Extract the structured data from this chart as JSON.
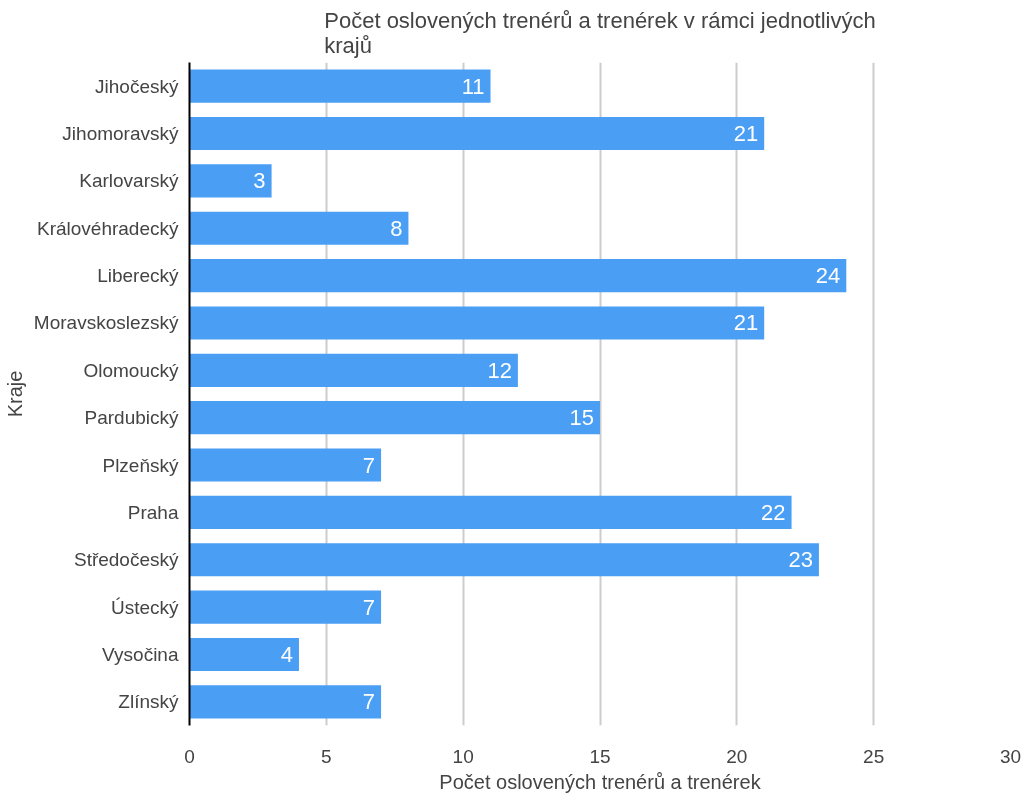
{
  "chart_data": {
    "type": "bar",
    "orientation": "horizontal",
    "title": "Počet oslovených trenérů a trenérek v rámci jednotlivých krajů",
    "xlabel": "Počet oslovených trenérů a trenérek",
    "ylabel": "Kraje",
    "categories": [
      "Jihočeský",
      "Jihomoravský",
      "Karlovarský",
      "Královéhradecký",
      "Liberecký",
      "Moravskoslezský",
      "Olomoucký",
      "Pardubický",
      "Plzeňský",
      "Praha",
      "Středočeský",
      "Ústecký",
      "Vysočina",
      "Zlínský"
    ],
    "values": [
      11,
      21,
      3,
      8,
      24,
      21,
      12,
      15,
      7,
      22,
      23,
      7,
      4,
      7
    ],
    "color": "#4a9ff5",
    "xlim": [
      0,
      30
    ],
    "xticks": [
      0,
      5,
      10,
      15,
      20,
      25,
      30
    ],
    "grid": "x",
    "data_labels": true
  }
}
